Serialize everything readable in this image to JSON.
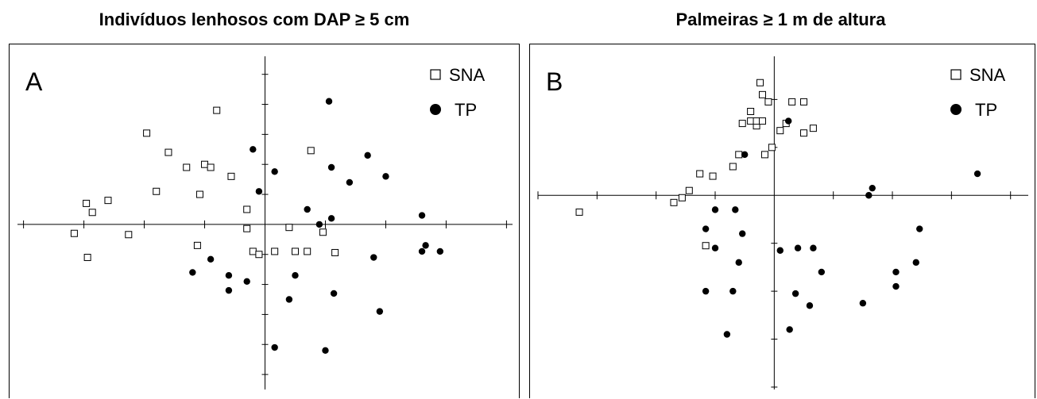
{
  "chart_data": [
    {
      "type": "scatter",
      "title": "Indivíduos lenhosos com DAP ≥ 5 cm",
      "panel_label": "A",
      "xlabel": "",
      "ylabel": "",
      "xlim": [
        -2.05,
        2.05
      ],
      "ylim": [
        -2.75,
        2.8
      ],
      "x_tick_step": 0.5,
      "y_tick_step": 0.5,
      "grid": false,
      "legend_position": "top-right",
      "series": [
        {
          "name": "SNA",
          "marker": "open-square",
          "points": [
            [
              -1.48,
              0.35
            ],
            [
              -1.3,
              0.4
            ],
            [
              -1.43,
              0.2
            ],
            [
              -1.58,
              -0.15
            ],
            [
              -1.47,
              -0.55
            ],
            [
              -1.13,
              -0.17
            ],
            [
              -0.98,
              1.52
            ],
            [
              -0.9,
              0.55
            ],
            [
              -0.8,
              1.2
            ],
            [
              -0.65,
              0.95
            ],
            [
              -0.54,
              0.5
            ],
            [
              -0.56,
              -0.35
            ],
            [
              -0.5,
              1.0
            ],
            [
              -0.45,
              0.95
            ],
            [
              -0.4,
              1.9
            ],
            [
              -0.28,
              0.8
            ],
            [
              -0.15,
              -0.07
            ],
            [
              -0.15,
              0.25
            ],
            [
              -0.1,
              -0.45
            ],
            [
              -0.05,
              -0.5
            ],
            [
              0.08,
              -0.45
            ],
            [
              0.25,
              -0.45
            ],
            [
              0.2,
              -0.05
            ],
            [
              0.38,
              1.23
            ],
            [
              0.35,
              -0.45
            ],
            [
              0.48,
              -0.13
            ],
            [
              0.58,
              -0.47
            ]
          ]
        },
        {
          "name": "TP",
          "marker": "filled-circle",
          "points": [
            [
              -0.6,
              -0.8
            ],
            [
              -0.45,
              -0.58
            ],
            [
              -0.3,
              -0.85
            ],
            [
              -0.3,
              -1.1
            ],
            [
              -0.15,
              -0.95
            ],
            [
              -0.1,
              1.25
            ],
            [
              -0.05,
              0.55
            ],
            [
              0.08,
              0.88
            ],
            [
              0.08,
              -2.05
            ],
            [
              0.2,
              -1.25
            ],
            [
              0.25,
              -0.85
            ],
            [
              0.35,
              0.25
            ],
            [
              0.45,
              0.0
            ],
            [
              0.5,
              -2.1
            ],
            [
              0.55,
              0.1
            ],
            [
              0.55,
              0.95
            ],
            [
              0.7,
              0.7
            ],
            [
              0.85,
              1.15
            ],
            [
              0.9,
              -0.55
            ],
            [
              0.95,
              -1.45
            ],
            [
              1.0,
              0.8
            ],
            [
              1.3,
              0.15
            ],
            [
              1.3,
              -0.45
            ],
            [
              1.33,
              -0.35
            ],
            [
              1.45,
              -0.45
            ],
            [
              0.53,
              2.05
            ],
            [
              0.57,
              -1.15
            ]
          ]
        }
      ]
    },
    {
      "type": "scatter",
      "title": "Palmeiras ≥ 1 m de altura",
      "panel_label": "B",
      "xlabel": "",
      "ylabel": "",
      "xlim": [
        -2.0,
        2.15
      ],
      "ylim": [
        -4.05,
        2.9
      ],
      "x_tick_step": 0.5,
      "y_tick_step": 1,
      "grid": false,
      "legend_position": "top-right",
      "series": [
        {
          "name": "SNA",
          "marker": "open-square",
          "points": [
            [
              -1.65,
              -0.35
            ],
            [
              -0.85,
              -0.15
            ],
            [
              -0.78,
              -0.05
            ],
            [
              -0.72,
              0.1
            ],
            [
              -0.63,
              0.45
            ],
            [
              -0.52,
              0.4
            ],
            [
              -0.35,
              0.6
            ],
            [
              -0.3,
              0.85
            ],
            [
              -0.27,
              1.5
            ],
            [
              -0.2,
              1.55
            ],
            [
              -0.2,
              1.75
            ],
            [
              -0.15,
              1.45
            ],
            [
              -0.15,
              1.55
            ],
            [
              -0.1,
              2.1
            ],
            [
              -0.12,
              2.35
            ],
            [
              -0.1,
              1.55
            ],
            [
              -0.05,
              1.95
            ],
            [
              -0.02,
              1.0
            ],
            [
              -0.08,
              0.85
            ],
            [
              0.05,
              1.35
            ],
            [
              0.1,
              1.5
            ],
            [
              0.15,
              1.95
            ],
            [
              0.25,
              1.95
            ],
            [
              0.25,
              1.3
            ],
            [
              0.33,
              1.4
            ],
            [
              -0.58,
              -1.05
            ]
          ]
        },
        {
          "name": "TP",
          "marker": "filled-circle",
          "points": [
            [
              -0.5,
              -0.3
            ],
            [
              -0.33,
              -0.3
            ],
            [
              -0.58,
              -0.7
            ],
            [
              -0.5,
              -1.1
            ],
            [
              -0.27,
              -0.8
            ],
            [
              -0.3,
              -1.4
            ],
            [
              -0.58,
              -2.0
            ],
            [
              -0.4,
              -2.9
            ],
            [
              -0.35,
              -2.0
            ],
            [
              -0.25,
              0.85
            ],
            [
              0.12,
              1.55
            ],
            [
              0.05,
              -1.15
            ],
            [
              0.2,
              -1.1
            ],
            [
              0.33,
              -1.1
            ],
            [
              0.4,
              -1.6
            ],
            [
              0.18,
              -2.05
            ],
            [
              0.3,
              -2.3
            ],
            [
              0.13,
              -2.8
            ],
            [
              0.8,
              0.0
            ],
            [
              0.83,
              0.15
            ],
            [
              0.75,
              -2.25
            ],
            [
              1.03,
              -1.6
            ],
            [
              1.03,
              -1.9
            ],
            [
              1.2,
              -1.4
            ],
            [
              1.23,
              -0.7
            ],
            [
              1.72,
              0.45
            ]
          ]
        }
      ]
    }
  ]
}
